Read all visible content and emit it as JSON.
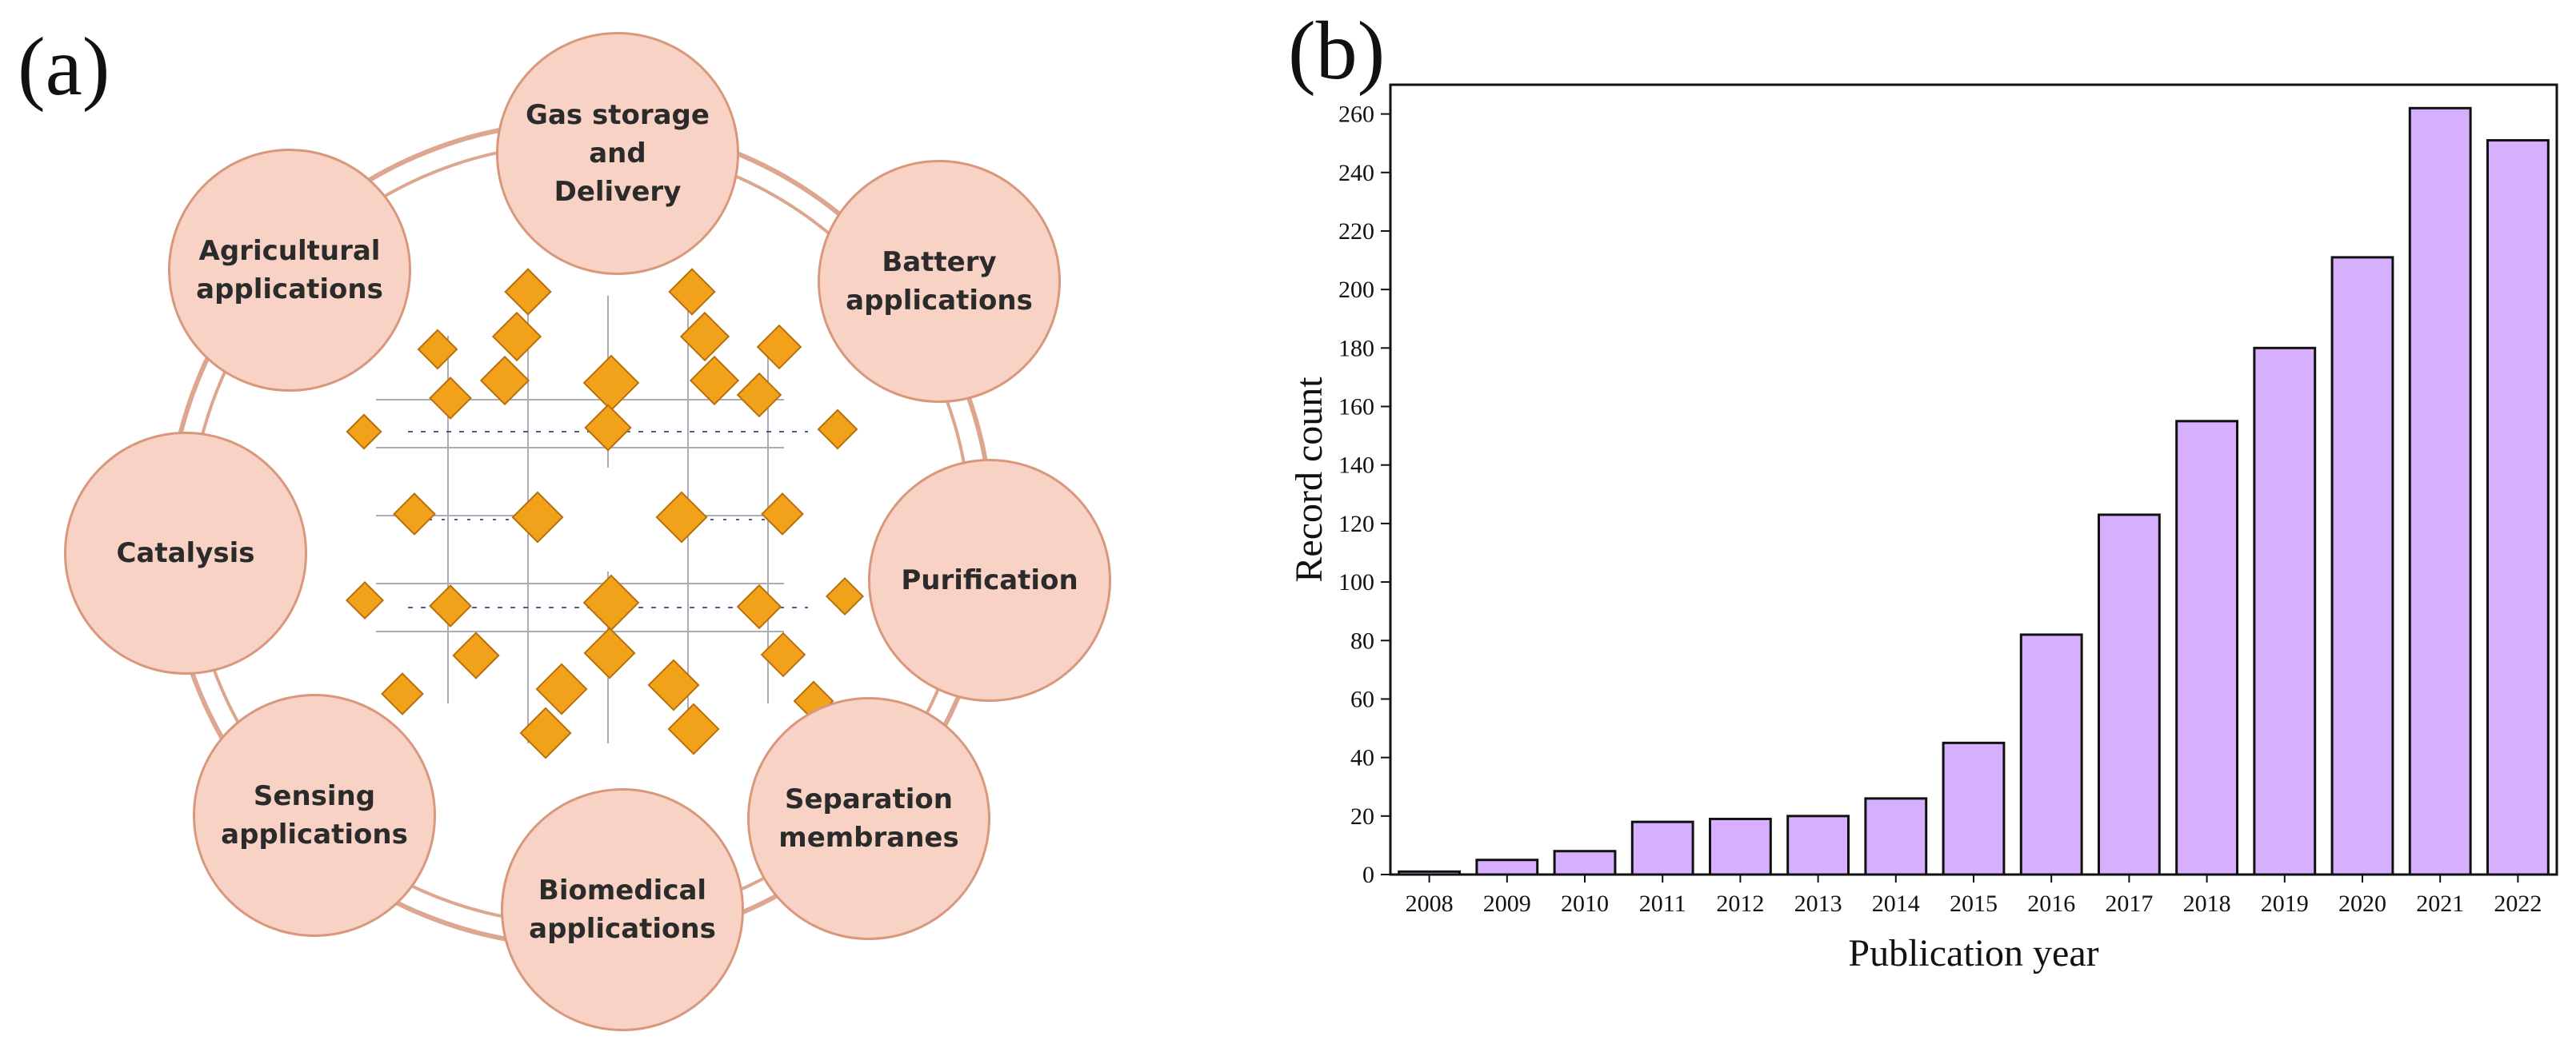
{
  "panel_a": {
    "label": "(a)",
    "center_icon": "mof-crystal-structure-icon",
    "colors": {
      "node_fill": "#f8d3c5",
      "node_border": "#d9977c",
      "ring": "#dda68e",
      "crystal": "#f2a11a"
    },
    "nodes": [
      {
        "id": "gas-storage",
        "text": "Gas storage\nand\nDelivery"
      },
      {
        "id": "battery",
        "text": "Battery\napplications"
      },
      {
        "id": "purification",
        "text": "Purification"
      },
      {
        "id": "separation",
        "text": "Separation\nmembranes"
      },
      {
        "id": "biomedical",
        "text": "Biomedical\napplications"
      },
      {
        "id": "sensing",
        "text": "Sensing\napplications"
      },
      {
        "id": "catalysis",
        "text": "Catalysis"
      },
      {
        "id": "agricultural",
        "text": "Agricultural\napplications"
      }
    ]
  },
  "panel_b": {
    "label": "(b)"
  },
  "chart_data": {
    "type": "bar",
    "title": "",
    "xlabel": "Publication year",
    "ylabel": "Record count",
    "categories": [
      "2008",
      "2009",
      "2010",
      "2011",
      "2012",
      "2013",
      "2014",
      "2015",
      "2016",
      "2017",
      "2018",
      "2019",
      "2020",
      "2021",
      "2022"
    ],
    "values": [
      1,
      5,
      8,
      18,
      19,
      20,
      26,
      45,
      82,
      123,
      155,
      180,
      211,
      262,
      251
    ],
    "ylim": [
      0,
      270
    ],
    "yticks": [
      0,
      20,
      40,
      60,
      80,
      100,
      120,
      140,
      160,
      180,
      200,
      220,
      240,
      260
    ],
    "grid": false,
    "bar_color": "#d6b0ff",
    "bar_edge_color": "#111111"
  }
}
